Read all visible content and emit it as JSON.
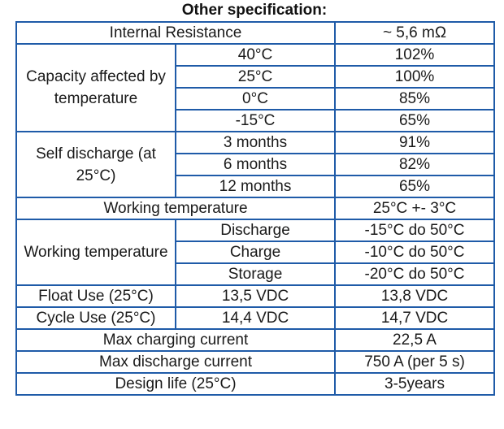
{
  "title": "Other specification:",
  "rows": {
    "internal_resistance": {
      "label": "Internal Resistance",
      "value": "~ 5,6 mΩ"
    },
    "capacity": {
      "label": "Capacity affected by temperature",
      "items": [
        {
          "condition": "40°C",
          "value": "102%"
        },
        {
          "condition": "25°C",
          "value": "100%"
        },
        {
          "condition": "0°C",
          "value": "85%"
        },
        {
          "condition": "-15°C",
          "value": "65%"
        }
      ]
    },
    "self_discharge": {
      "label": "Self discharge (at 25°C)",
      "items": [
        {
          "condition": "3 months",
          "value": "91%"
        },
        {
          "condition": "6 months",
          "value": "82%"
        },
        {
          "condition": "12 months",
          "value": "65%"
        }
      ]
    },
    "working_temperature_nominal": {
      "label": "Working temperature",
      "value": "25°C +- 3°C"
    },
    "working_temperature_ranges": {
      "label": "Working temperature",
      "items": [
        {
          "condition": "Discharge",
          "value": "-15°C do 50°C"
        },
        {
          "condition": "Charge",
          "value": "-10°C do 50°C"
        },
        {
          "condition": "Storage",
          "value": "-20°C do 50°C"
        }
      ]
    },
    "float_use": {
      "label": "Float Use (25°C)",
      "min": "13,5 VDC",
      "max": "13,8 VDC"
    },
    "cycle_use": {
      "label": "Cycle Use (25°C)",
      "min": "14,4 VDC",
      "max": "14,7 VDC"
    },
    "max_charging_current": {
      "label": "Max charging current",
      "value": "22,5 A"
    },
    "max_discharge_current": {
      "label": "Max discharge current",
      "value": "750 A (per 5 s)"
    },
    "design_life": {
      "label": "Design life (25°C)",
      "value": "3-5years"
    }
  }
}
